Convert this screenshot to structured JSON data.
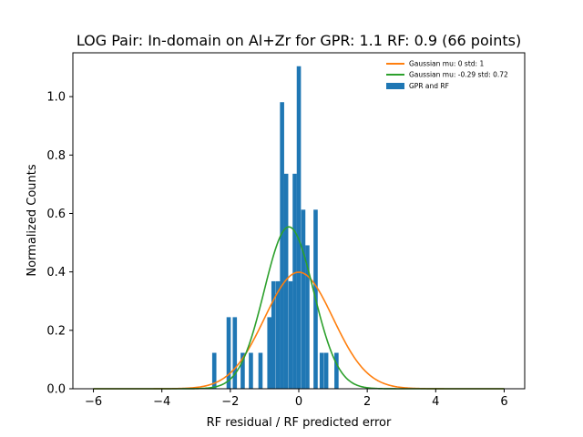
{
  "chart_data": {
    "type": "bar",
    "title": "LOG Pair: In-domain on Al+Zr for GPR: 1.1 RF: 0.9 (66 points)",
    "xlabel": "RF residual / RF predicted error",
    "ylabel": "Normalized Counts",
    "xlim": [
      -6.6,
      6.6
    ],
    "ylim": [
      0,
      1.15
    ],
    "xticks": [
      -6,
      -4,
      -2,
      0,
      2,
      4,
      6
    ],
    "xtick_labels": [
      "−6",
      "−4",
      "−2",
      "0",
      "2",
      "4",
      "6"
    ],
    "yticks": [
      0.0,
      0.2,
      0.4,
      0.6,
      0.8,
      1.0
    ],
    "ytick_labels": [
      "0.0",
      "0.2",
      "0.4",
      "0.6",
      "0.8",
      "1.0"
    ],
    "grid": false,
    "legend_position": "top-right",
    "colors": {
      "histogram": "#1f77b4",
      "gaussian_standard": "#ff7f0e",
      "gaussian_fit": "#2ca02c"
    },
    "histogram": {
      "name": "GPR and RF",
      "bin_width": 0.1228,
      "bins": [
        {
          "x0": -2.53,
          "height": 0.123
        },
        {
          "x0": -2.11,
          "height": 0.245
        },
        {
          "x0": -1.93,
          "height": 0.245
        },
        {
          "x0": -1.7,
          "height": 0.123
        },
        {
          "x0": -1.46,
          "height": 0.123
        },
        {
          "x0": -1.18,
          "height": 0.123
        },
        {
          "x0": -0.92,
          "height": 0.245
        },
        {
          "x0": -0.8,
          "height": 0.368
        },
        {
          "x0": -0.67,
          "height": 0.368
        },
        {
          "x0": -0.55,
          "height": 0.981
        },
        {
          "x0": -0.43,
          "height": 0.736
        },
        {
          "x0": -0.3,
          "height": 0.368
        },
        {
          "x0": -0.18,
          "height": 0.736
        },
        {
          "x0": -0.06,
          "height": 1.104
        },
        {
          "x0": 0.07,
          "height": 0.613
        },
        {
          "x0": 0.19,
          "height": 0.491
        },
        {
          "x0": 0.43,
          "height": 0.613
        },
        {
          "x0": 0.61,
          "height": 0.123
        },
        {
          "x0": 0.74,
          "height": 0.123
        },
        {
          "x0": 1.04,
          "height": 0.123
        }
      ]
    },
    "series": [
      {
        "name": "Gaussian mu: 0 std: 1",
        "type": "gaussian",
        "mu": 0,
        "std": 1,
        "x_range": [
          -6,
          6
        ]
      },
      {
        "name": "Gaussian mu: -0.29 std: 0.72",
        "type": "gaussian",
        "mu": -0.29,
        "std": 0.72,
        "x_range": [
          -6,
          6
        ]
      }
    ]
  }
}
